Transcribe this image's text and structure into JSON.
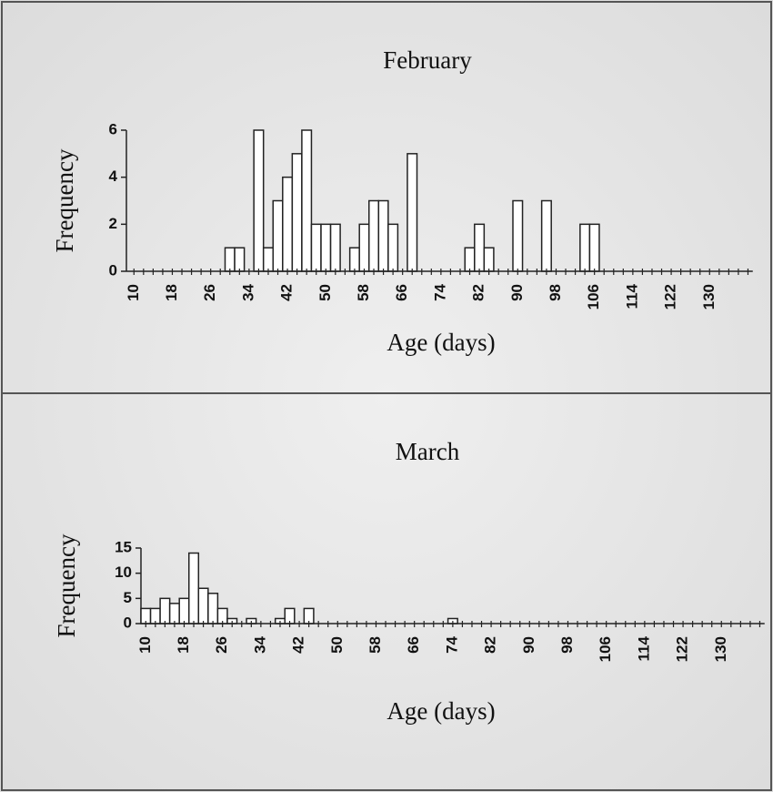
{
  "chart_data": [
    {
      "type": "bar",
      "title": "February",
      "xlabel": "Age (days)",
      "ylabel": "Frequency",
      "categories": [
        "10",
        null,
        null,
        null,
        "18",
        null,
        null,
        null,
        "26",
        null,
        null,
        null,
        "34",
        null,
        null,
        null,
        "42",
        null,
        null,
        null,
        "50",
        null,
        null,
        null,
        "58",
        null,
        null,
        null,
        "66",
        null,
        null,
        null,
        "74",
        null,
        null,
        null,
        "82",
        null,
        null,
        null,
        "90",
        null,
        null,
        null,
        "98",
        null,
        null,
        null,
        "106",
        null,
        null,
        null,
        "114",
        null,
        null,
        null,
        "122",
        null,
        null,
        null,
        "130",
        null,
        null,
        null,
        null
      ],
      "values": [
        0,
        0,
        0,
        0,
        0,
        0,
        0,
        0,
        0,
        0,
        1,
        1,
        0,
        6,
        1,
        3,
        4,
        5,
        6,
        2,
        2,
        2,
        0,
        1,
        2,
        3,
        3,
        2,
        0,
        5,
        0,
        0,
        0,
        0,
        0,
        1,
        2,
        1,
        0,
        0,
        3,
        0,
        0,
        3,
        0,
        0,
        0,
        2,
        2,
        0,
        0,
        0,
        0,
        0,
        0,
        0,
        0,
        0,
        0,
        0,
        0,
        0,
        0,
        0,
        0
      ],
      "color": "#ffffff",
      "ylim": [
        0,
        6
      ],
      "yticks": [
        0,
        2,
        4,
        6
      ]
    },
    {
      "type": "bar",
      "title": "March",
      "xlabel": "Age (days)",
      "ylabel": "Frequency",
      "categories": [
        "10",
        null,
        null,
        null,
        "18",
        null,
        null,
        null,
        "26",
        null,
        null,
        null,
        "34",
        null,
        null,
        null,
        "42",
        null,
        null,
        null,
        "50",
        null,
        null,
        null,
        "58",
        null,
        null,
        null,
        "66",
        null,
        null,
        null,
        "74",
        null,
        null,
        null,
        "82",
        null,
        null,
        null,
        "90",
        null,
        null,
        null,
        "98",
        null,
        null,
        null,
        "106",
        null,
        null,
        null,
        "114",
        null,
        null,
        null,
        "122",
        null,
        null,
        null,
        "130",
        null,
        null,
        null,
        null
      ],
      "values": [
        3,
        3,
        5,
        4,
        5,
        14,
        7,
        6,
        3,
        1,
        0,
        1,
        0,
        0,
        1,
        3,
        0,
        3,
        0,
        0,
        0,
        0,
        0,
        0,
        0,
        0,
        0,
        0,
        0,
        0,
        0,
        0,
        1,
        0,
        0,
        0,
        0,
        0,
        0,
        0,
        0,
        0,
        0,
        0,
        0,
        0,
        0,
        0,
        0,
        0,
        0,
        0,
        0,
        0,
        0,
        0,
        0,
        0,
        0,
        0,
        0,
        0,
        0,
        0,
        0
      ],
      "color": "#ffffff",
      "ylim": [
        0,
        15
      ],
      "yticks": [
        0,
        5,
        10,
        15
      ]
    }
  ]
}
